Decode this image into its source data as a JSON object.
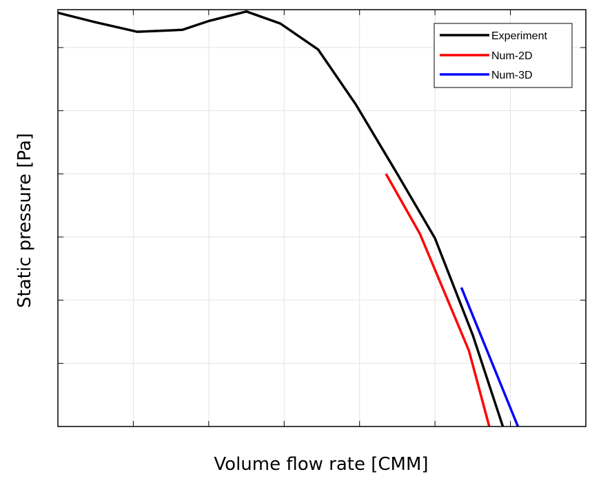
{
  "chart_data": {
    "type": "line",
    "title": "",
    "xlabel": "Volume flow rate [CMM]",
    "ylabel": "Static pressure [Pa]",
    "xlim": [
      0,
      7
    ],
    "ylim": [
      0,
      6.6
    ],
    "x_tick_count": 7,
    "y_tick_count": 6,
    "tick_labels_shown": false,
    "grid": true,
    "legend_position": "top-right",
    "series": [
      {
        "name": "Experiment",
        "color": "#000000",
        "points": [
          [
            0,
            6.55
          ],
          [
            0.5,
            6.4
          ],
          [
            1.05,
            6.25
          ],
          [
            1.65,
            6.28
          ],
          [
            2.0,
            6.42
          ],
          [
            2.5,
            6.57
          ],
          [
            2.95,
            6.38
          ],
          [
            3.45,
            5.97
          ],
          [
            3.95,
            5.1
          ],
          [
            4.5,
            4.0
          ],
          [
            5.0,
            2.98
          ],
          [
            5.5,
            1.45
          ],
          [
            5.9,
            0
          ]
        ]
      },
      {
        "name": "Num-2D",
        "color": "#ff0000",
        "points": [
          [
            4.35,
            4.0
          ],
          [
            4.8,
            3.05
          ],
          [
            5.45,
            1.2
          ],
          [
            5.72,
            0
          ]
        ]
      },
      {
        "name": "Num-3D",
        "color": "#0000ff",
        "points": [
          [
            5.35,
            2.2
          ],
          [
            6.1,
            0
          ]
        ]
      }
    ]
  }
}
